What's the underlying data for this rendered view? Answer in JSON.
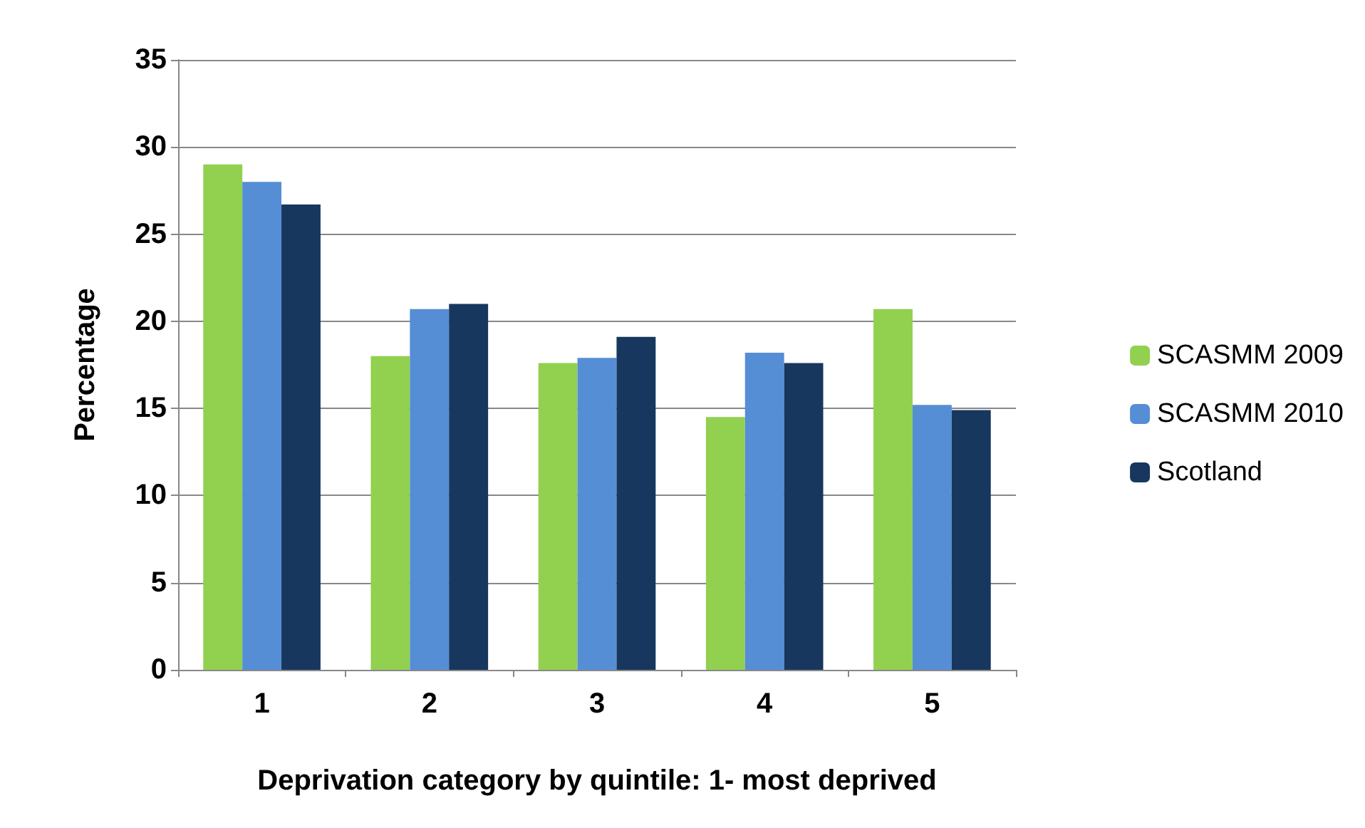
{
  "chart_data": {
    "type": "bar",
    "xlabel": "Deprivation category by quintile: 1- most deprived",
    "ylabel": "Percentage",
    "categories": [
      "1",
      "2",
      "3",
      "4",
      "5"
    ],
    "series": [
      {
        "name": "SCASMM 2009",
        "color": "#92d050",
        "values": [
          29.0,
          18.0,
          17.6,
          14.5,
          20.7
        ]
      },
      {
        "name": "SCASMM 2010",
        "color": "#558ed5",
        "values": [
          28.0,
          20.7,
          17.9,
          18.2,
          15.2
        ]
      },
      {
        "name": "Scotland",
        "color": "#17375e",
        "values": [
          26.7,
          21.0,
          19.1,
          17.6,
          14.9
        ]
      }
    ],
    "ylim": [
      0,
      35
    ],
    "yticks": [
      0,
      5,
      10,
      15,
      20,
      25,
      30,
      35
    ],
    "grid": "y",
    "legend": "right"
  }
}
